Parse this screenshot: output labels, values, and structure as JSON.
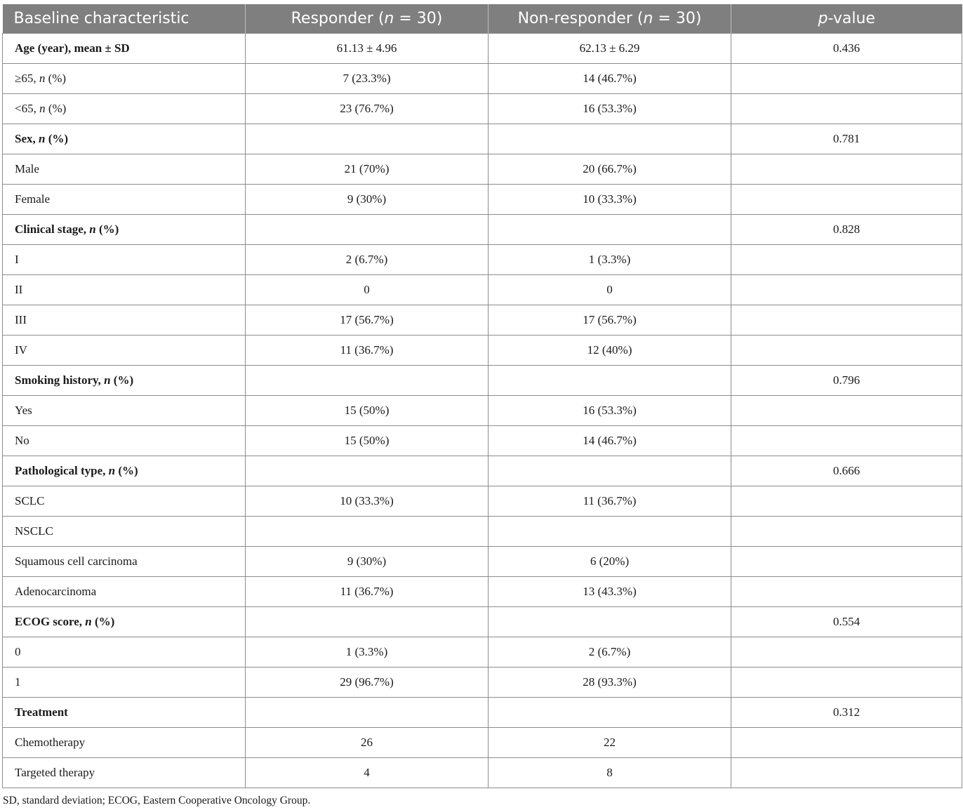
{
  "header": {
    "col1": "Baseline characteristic",
    "col2_pre": "Responder (",
    "col2_n": "n",
    "col2_post": " = 30)",
    "col3_pre": "Non-responder (",
    "col3_n": "n",
    "col3_post": " = 30)",
    "col4_p": "p",
    "col4_post": "-value"
  },
  "rows": [
    {
      "pre": "Age (year), mean ± SD",
      "it": "",
      "post": "",
      "responder": "61.13 ± 4.96",
      "nonresponder": "62.13 ± 6.29",
      "p": "0.436",
      "section": true
    },
    {
      "pre": "≥65, ",
      "it": "n",
      "post": " (%)",
      "responder": "7 (23.3%)",
      "nonresponder": "14 (46.7%)",
      "p": "",
      "section": false
    },
    {
      "pre": "<65, ",
      "it": "n",
      "post": " (%)",
      "responder": "23 (76.7%)",
      "nonresponder": "16 (53.3%)",
      "p": "",
      "section": false
    },
    {
      "pre": "Sex, ",
      "it": "n",
      "post": " (%)",
      "responder": "",
      "nonresponder": "",
      "p": "0.781",
      "section": true
    },
    {
      "pre": "Male",
      "it": "",
      "post": "",
      "responder": "21 (70%)",
      "nonresponder": "20 (66.7%)",
      "p": "",
      "section": false
    },
    {
      "pre": "Female",
      "it": "",
      "post": "",
      "responder": "9 (30%)",
      "nonresponder": "10 (33.3%)",
      "p": "",
      "section": false
    },
    {
      "pre": "Clinical stage, ",
      "it": "n",
      "post": " (%)",
      "responder": "",
      "nonresponder": "",
      "p": "0.828",
      "section": true
    },
    {
      "pre": "I",
      "it": "",
      "post": "",
      "responder": "2 (6.7%)",
      "nonresponder": "1 (3.3%)",
      "p": "",
      "section": false
    },
    {
      "pre": "II",
      "it": "",
      "post": "",
      "responder": "0",
      "nonresponder": "0",
      "p": "",
      "section": false
    },
    {
      "pre": "III",
      "it": "",
      "post": "",
      "responder": "17 (56.7%)",
      "nonresponder": "17 (56.7%)",
      "p": "",
      "section": false
    },
    {
      "pre": "IV",
      "it": "",
      "post": "",
      "responder": "11 (36.7%)",
      "nonresponder": "12 (40%)",
      "p": "",
      "section": false
    },
    {
      "pre": "Smoking history, ",
      "it": "n",
      "post": " (%)",
      "responder": "",
      "nonresponder": "",
      "p": "0.796",
      "section": true
    },
    {
      "pre": "Yes",
      "it": "",
      "post": "",
      "responder": "15 (50%)",
      "nonresponder": "16 (53.3%)",
      "p": "",
      "section": false
    },
    {
      "pre": "No",
      "it": "",
      "post": "",
      "responder": "15 (50%)",
      "nonresponder": "14 (46.7%)",
      "p": "",
      "section": false
    },
    {
      "pre": "Pathological type, ",
      "it": "n",
      "post": " (%)",
      "responder": "",
      "nonresponder": "",
      "p": "0.666",
      "section": true
    },
    {
      "pre": "SCLC",
      "it": "",
      "post": "",
      "responder": "10 (33.3%)",
      "nonresponder": "11 (36.7%)",
      "p": "",
      "section": false
    },
    {
      "pre": "NSCLC",
      "it": "",
      "post": "",
      "responder": "",
      "nonresponder": "",
      "p": "",
      "section": false
    },
    {
      "pre": "Squamous cell carcinoma",
      "it": "",
      "post": "",
      "responder": "9 (30%)",
      "nonresponder": "6 (20%)",
      "p": "",
      "section": false
    },
    {
      "pre": "Adenocarcinoma",
      "it": "",
      "post": "",
      "responder": "11 (36.7%)",
      "nonresponder": "13 (43.3%)",
      "p": "",
      "section": false
    },
    {
      "pre": "ECOG score, ",
      "it": "n",
      "post": " (%)",
      "responder": "",
      "nonresponder": "",
      "p": "0.554",
      "section": true
    },
    {
      "pre": "0",
      "it": "",
      "post": "",
      "responder": "1 (3.3%)",
      "nonresponder": "2 (6.7%)",
      "p": "",
      "section": false
    },
    {
      "pre": "1",
      "it": "",
      "post": "",
      "responder": "29 (96.7%)",
      "nonresponder": "28 (93.3%)",
      "p": "",
      "section": false
    },
    {
      "pre": "Treatment",
      "it": "",
      "post": "",
      "responder": "",
      "nonresponder": "",
      "p": "0.312",
      "section": true
    },
    {
      "pre": "Chemotherapy",
      "it": "",
      "post": "",
      "responder": "26",
      "nonresponder": "22",
      "p": "",
      "section": false
    },
    {
      "pre": "Targeted therapy",
      "it": "",
      "post": "",
      "responder": "4",
      "nonresponder": "8",
      "p": "",
      "section": false
    }
  ],
  "footnote": "SD, standard deviation; ECOG, Eastern Cooperative Oncology Group."
}
